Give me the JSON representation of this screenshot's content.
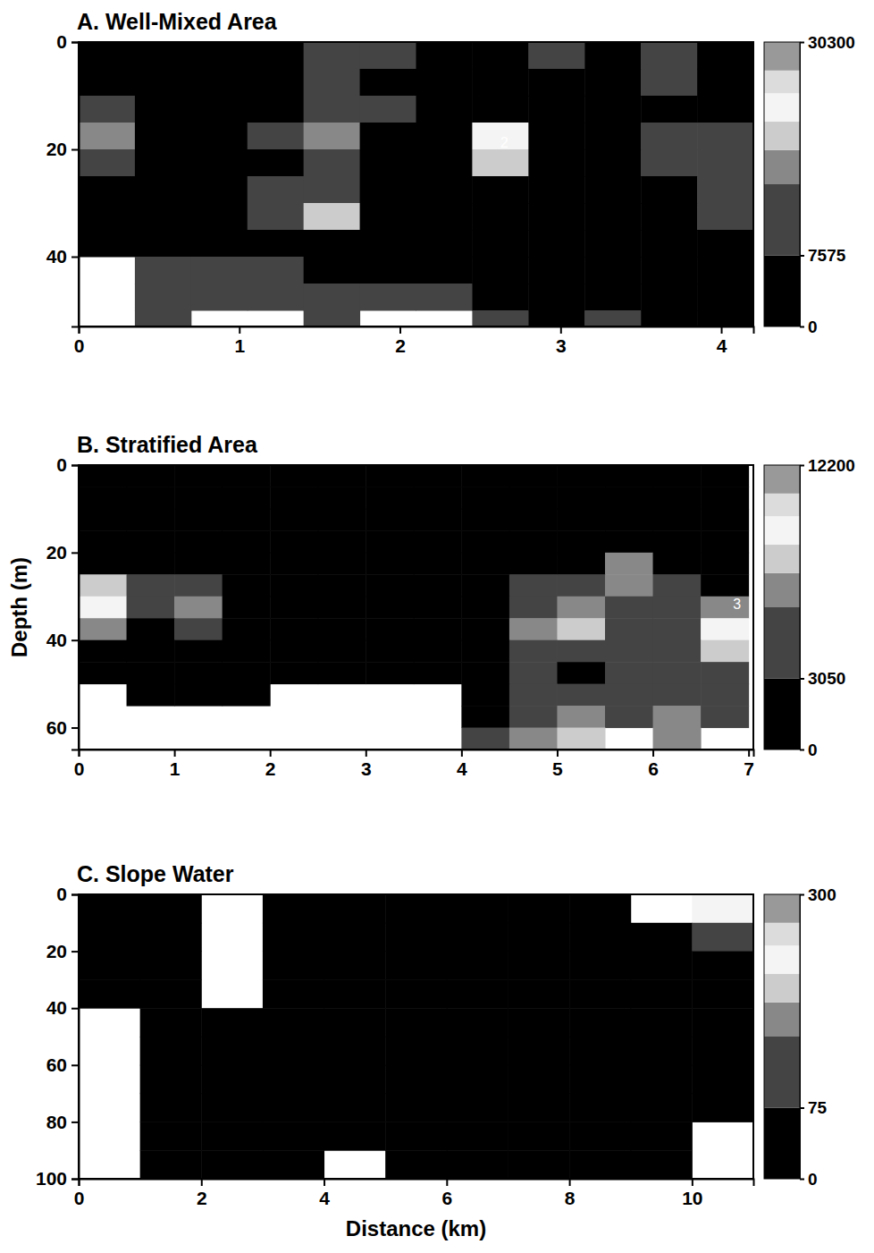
{
  "chart_data": [
    {
      "type": "heatmap",
      "title": "A. Well-Mixed Area",
      "x": [
        0.175,
        0.525,
        0.875,
        1.225,
        1.575,
        1.925,
        2.275,
        2.625,
        2.975,
        3.325,
        3.675,
        4.025
      ],
      "y": [
        2.5,
        7.5,
        12.5,
        17.5,
        22.5,
        27.5,
        32.5,
        37.5,
        42.5,
        47.5,
        52.5
      ],
      "values": [
        [
          3000,
          4000,
          5000,
          6000,
          14000,
          12000,
          5000,
          4000,
          13000,
          6000,
          12000,
          5000
        ],
        [
          5000,
          4000,
          6000,
          5000,
          9000,
          6000,
          4000,
          3000,
          6000,
          4000,
          8000,
          4000
        ],
        [
          8000,
          6000,
          4000,
          5000,
          13000,
          10000,
          4000,
          5000,
          5000,
          4000,
          6000,
          5000
        ],
        [
          16000,
          6000,
          5000,
          8000,
          17000,
          6000,
          4000,
          22000,
          6000,
          5000,
          14000,
          9000
        ],
        [
          14000,
          5000,
          4000,
          7000,
          9000,
          5000,
          4000,
          20000,
          5000,
          6000,
          15000,
          11000
        ],
        [
          6000,
          4000,
          5000,
          9000,
          12000,
          5000,
          3000,
          6000,
          6000,
          4000,
          7000,
          14000
        ],
        [
          4000,
          3000,
          4000,
          8000,
          19000,
          6000,
          3000,
          4000,
          4000,
          3000,
          6000,
          9000
        ],
        [
          5000,
          6000,
          7000,
          5000,
          7000,
          4000,
          3000,
          3000,
          4000,
          3000,
          4000,
          5000
        ],
        [
          null,
          10000,
          12000,
          8000,
          6000,
          5000,
          4000,
          4000,
          3000,
          3000,
          5000,
          4000
        ],
        [
          null,
          12000,
          11000,
          10000,
          9000,
          12000,
          8000,
          5000,
          4000,
          6000,
          6000,
          4000
        ],
        [
          null,
          13000,
          null,
          null,
          12000,
          null,
          null,
          9000,
          6000,
          9000,
          7000,
          5000
        ]
      ],
      "xlim": [
        0,
        4.2
      ],
      "xticks": [
        0,
        1,
        2,
        3,
        4
      ],
      "ylim": [
        0,
        53
      ],
      "yticks": [
        0,
        20,
        40
      ],
      "colorbar_range": [
        0,
        30300
      ],
      "colorbar_ticks": [
        0,
        7575,
        30300
      ],
      "annotations": [
        {
          "text": "2",
          "x": 2.65,
          "y": 19
        }
      ]
    },
    {
      "type": "heatmap",
      "title": "B. Stratified Area",
      "y_label": "Depth (m)",
      "x": [
        0.25,
        0.75,
        1.25,
        1.75,
        2.25,
        2.75,
        3.25,
        3.75,
        4.25,
        4.75,
        5.25,
        5.75,
        6.25,
        6.75
      ],
      "y": [
        2.5,
        7.5,
        12.5,
        17.5,
        22.5,
        27.5,
        32.5,
        37.5,
        42.5,
        47.5,
        52.5,
        57.5,
        62.5
      ],
      "values": [
        [
          800,
          900,
          1000,
          900,
          800,
          900,
          1000,
          1100,
          1000,
          900,
          800,
          900,
          1000,
          900
        ],
        [
          900,
          1000,
          1100,
          1000,
          900,
          1000,
          1100,
          1000,
          900,
          1000,
          1100,
          1200,
          1000,
          900
        ],
        [
          1000,
          1100,
          1200,
          1100,
          1000,
          1000,
          1200,
          1100,
          1000,
          1100,
          1200,
          1300,
          1100,
          1000
        ],
        [
          1200,
          1300,
          1200,
          1100,
          1100,
          1200,
          1300,
          1200,
          1100,
          1300,
          1500,
          1600,
          1400,
          1200
        ],
        [
          3000,
          2000,
          1500,
          1300,
          1200,
          1300,
          1400,
          1300,
          1400,
          2000,
          2500,
          7000,
          3000,
          2000
        ],
        [
          8500,
          5000,
          4000,
          2000,
          1500,
          1400,
          1500,
          1600,
          2500,
          4000,
          3500,
          6500,
          4000,
          3000
        ],
        [
          9000,
          4500,
          7000,
          2500,
          1800,
          1600,
          1700,
          1800,
          3000,
          5000,
          7000,
          5000,
          5500,
          7500
        ],
        [
          7000,
          3000,
          4000,
          2000,
          1700,
          1500,
          1600,
          1700,
          2500,
          6500,
          8000,
          4500,
          6000,
          9500
        ],
        [
          3000,
          2000,
          2000,
          1800,
          1600,
          1500,
          1500,
          1600,
          2200,
          5500,
          4000,
          3500,
          5000,
          8000
        ],
        [
          2000,
          1800,
          1700,
          1600,
          1500,
          1400,
          1500,
          1600,
          2000,
          4000,
          3000,
          3500,
          4000,
          5000
        ],
        [
          null,
          1600,
          1500,
          1500,
          null,
          null,
          null,
          null,
          1800,
          3500,
          5000,
          4500,
          5000,
          4500
        ],
        [
          null,
          null,
          null,
          null,
          null,
          null,
          null,
          null,
          3000,
          5000,
          7000,
          6000,
          6500,
          6000
        ],
        [
          null,
          null,
          null,
          null,
          null,
          null,
          null,
          null,
          4000,
          6500,
          8000,
          null,
          7000,
          null
        ]
      ],
      "xlim": [
        0,
        7.05
      ],
      "xticks": [
        0,
        1,
        2,
        3,
        4,
        5,
        6,
        7
      ],
      "ylim": [
        0,
        65
      ],
      "yticks": [
        0,
        20,
        40,
        60
      ],
      "colorbar_range": [
        0,
        12200
      ],
      "colorbar_ticks": [
        0,
        3050,
        12200
      ],
      "annotations": [
        {
          "text": "3",
          "x": 6.88,
          "y": 32
        }
      ]
    },
    {
      "type": "heatmap",
      "title": "C. Slope Water",
      "x_label": "Distance (km)",
      "x": [
        0.5,
        1.5,
        2.5,
        3.5,
        4.5,
        5.5,
        6.5,
        7.5,
        8.5,
        9.5,
        10.5
      ],
      "y": [
        5,
        15,
        25,
        35,
        45,
        55,
        65,
        75,
        85,
        95
      ],
      "values": [
        [
          30,
          40,
          null,
          40,
          30,
          35,
          30,
          40,
          35,
          null,
          220
        ],
        [
          35,
          30,
          null,
          35,
          40,
          30,
          35,
          30,
          40,
          45,
          90
        ],
        [
          30,
          35,
          null,
          30,
          35,
          40,
          30,
          35,
          30,
          40,
          40
        ],
        [
          40,
          30,
          null,
          35,
          30,
          35,
          40,
          30,
          35,
          30,
          35
        ],
        [
          null,
          30,
          35,
          30,
          35,
          30,
          35,
          40,
          30,
          35,
          30
        ],
        [
          null,
          35,
          30,
          35,
          30,
          35,
          30,
          35,
          40,
          30,
          35
        ],
        [
          null,
          30,
          35,
          30,
          35,
          30,
          35,
          30,
          35,
          40,
          30
        ],
        [
          null,
          35,
          30,
          35,
          30,
          35,
          30,
          35,
          30,
          35,
          30
        ],
        [
          null,
          30,
          35,
          30,
          35,
          30,
          35,
          30,
          35,
          30,
          null
        ],
        [
          null,
          35,
          30,
          35,
          null,
          30,
          35,
          30,
          35,
          30,
          null
        ]
      ],
      "xlim": [
        0,
        11
      ],
      "xticks": [
        0,
        2,
        4,
        6,
        8,
        10
      ],
      "ylim": [
        0,
        100
      ],
      "yticks": [
        0,
        20,
        40,
        60,
        80,
        100
      ],
      "colorbar_range": [
        0,
        300
      ],
      "colorbar_ticks": [
        0,
        75,
        300
      ]
    }
  ]
}
